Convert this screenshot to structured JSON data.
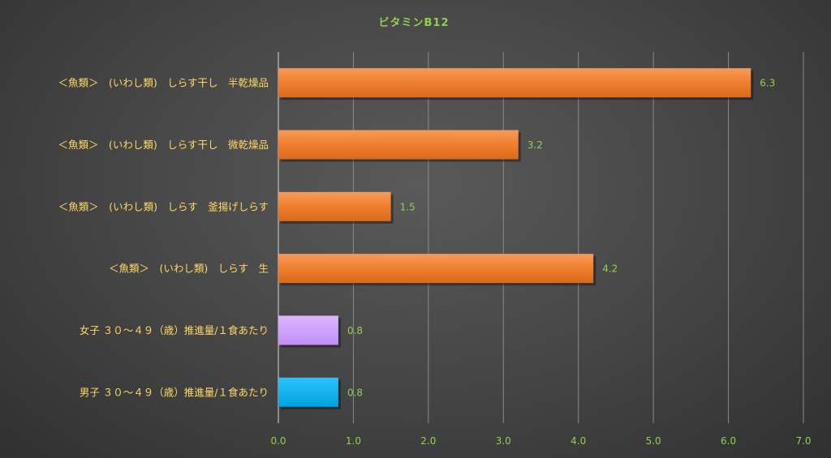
{
  "chart_data": {
    "type": "bar",
    "orientation": "horizontal",
    "title": "ビタミンB12",
    "categories": [
      "＜魚類＞　(いわし類)　しらす干し　半乾燥品",
      "＜魚類＞　(いわし類)　しらす干し　微乾燥品",
      "＜魚類＞　(いわし類)　しらす　釜揚げしらす",
      "＜魚類＞　(いわし類)　しらす　生",
      "女子 ３０～４９（歳）推進量/１食あたり",
      "男子 ３０～４９（歳）推進量/１食あたり"
    ],
    "values": [
      6.3,
      3.2,
      1.5,
      4.2,
      0.8,
      0.8
    ],
    "value_labels": [
      "6.3",
      "3.2",
      "1.5",
      "4.2",
      "0.8",
      "0.8"
    ],
    "bar_colors": [
      "#f07f2d",
      "#f07f2d",
      "#f07f2d",
      "#f07f2d",
      "#cc99ff",
      "#00b0f0"
    ],
    "xlim": [
      0,
      7
    ],
    "x_ticks": [
      "0.0",
      "1.0",
      "2.0",
      "3.0",
      "4.0",
      "5.0",
      "6.0",
      "7.0"
    ],
    "grid": true,
    "legend": "none",
    "colors": {
      "title": "#92d050",
      "category_text": "#ffd966",
      "tick_text": "#92d050",
      "data_label_text": "#92d050"
    }
  }
}
